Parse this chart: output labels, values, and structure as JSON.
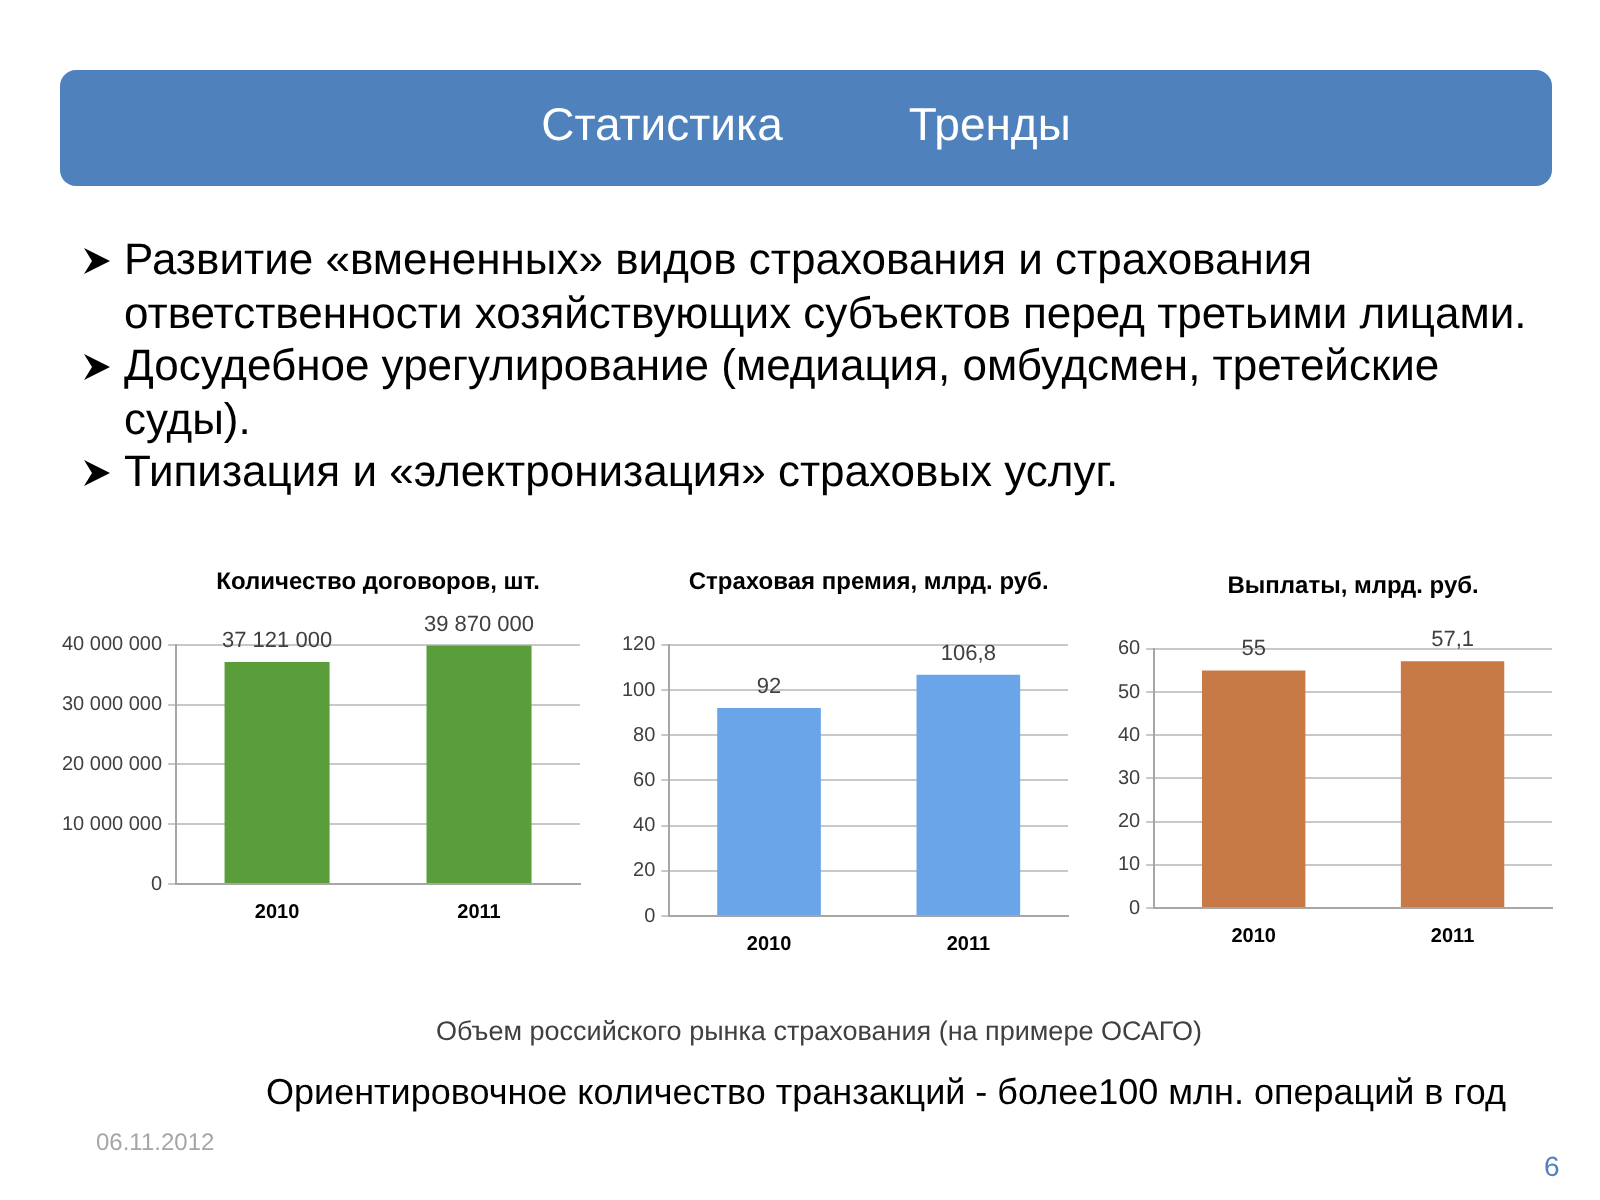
{
  "chart_data": [
    {
      "type": "other",
      "annotations": [
        "Статистика",
        "Тренды"
      ]
    },
    {
      "type": "other",
      "annotations": [
        "Развитие «вмененных» видов страхования и страхования ответственности хозяйствующих субъектов перед третьими лицами.",
        "Досудебное урегулирование (медиация, омбудсмен, третейские суды).",
        "Типизация и «электронизация» страховых услуг."
      ]
    },
    {
      "type": "bar",
      "title": "Количество договоров, шт.",
      "categories": [
        "2010",
        "2011"
      ],
      "values": [
        37121000,
        39870000
      ],
      "color": "#5a9e3c",
      "ylim": [
        0,
        40000000
      ],
      "yticks": [
        0,
        {
          "value": 10000000,
          "label": "10 000 000"
        },
        {
          "value": 20000000,
          "label": "20 000 000"
        },
        {
          "value": 30000000,
          "label": "30 000 000"
        },
        {
          "value": 40000000,
          "label": "40 000 000"
        }
      ],
      "grid": "y",
      "value_labels": [
        "37 121 000",
        "39 870 000"
      ]
    },
    {
      "type": "bar",
      "title": "Страховая премия, млрд. руб.",
      "categories": [
        "2010",
        "2011"
      ],
      "values": [
        92,
        106.8
      ],
      "color": "#6aa5ea",
      "ylim": [
        0,
        120
      ],
      "yticks": [
        0,
        20,
        40,
        60,
        80,
        100,
        120
      ],
      "grid": "y",
      "value_labels": [
        "92",
        "106,8"
      ]
    },
    {
      "type": "bar",
      "title": "Выплаты, млрд. руб.",
      "categories": [
        "2010",
        "2011"
      ],
      "values": [
        55,
        57.1
      ],
      "color": "#c77a45",
      "ylim": [
        0,
        60
      ],
      "yticks": [
        0,
        10,
        20,
        30,
        40,
        50,
        60
      ],
      "grid": "y",
      "value_labels": [
        "55",
        "57,1"
      ]
    },
    {
      "type": "other",
      "annotations": [
        "Объем российского рынка страхования (на примере ОСАГО)",
        "Ориентировочное количество транзакций - более100 млн. операций в год",
        "06.11.2012",
        "6"
      ]
    }
  ]
}
